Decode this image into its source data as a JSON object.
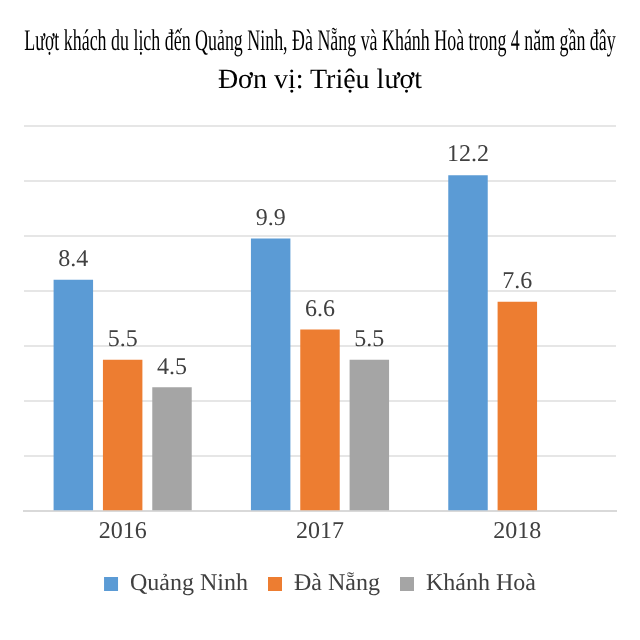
{
  "chart_data": {
    "type": "bar",
    "title": "Lượt khách du lịch đến Quảng Ninh, Đà Nẵng và Khánh Hoà trong 4 năm gần đây",
    "subtitle": "Đơn vị: Triệu lượt",
    "categories": [
      "2016",
      "2017",
      "2018"
    ],
    "series": [
      {
        "name": "Quảng Ninh",
        "color": "#5b9bd5",
        "values": [
          8.4,
          9.9,
          12.2
        ]
      },
      {
        "name": "Đà Nẵng",
        "color": "#ed7d31",
        "values": [
          5.5,
          6.6,
          7.6
        ]
      },
      {
        "name": "Khánh Hoà",
        "color": "#a5a5a5",
        "values": [
          4.5,
          5.5,
          null
        ]
      }
    ],
    "ylim": [
      0,
      14
    ],
    "yticks": [
      {
        "value": 0,
        "label": null
      },
      {
        "value": 2,
        "label": null
      },
      {
        "value": 4,
        "label": null
      },
      {
        "value": 6,
        "label": null
      },
      {
        "value": 8,
        "label": null
      },
      {
        "value": 10,
        "label": null
      },
      {
        "value": 12,
        "label": null
      },
      {
        "value": 14,
        "label": null
      }
    ],
    "tick_labels": "x",
    "grid": "y",
    "legend": "bottom",
    "data_labels": true
  }
}
